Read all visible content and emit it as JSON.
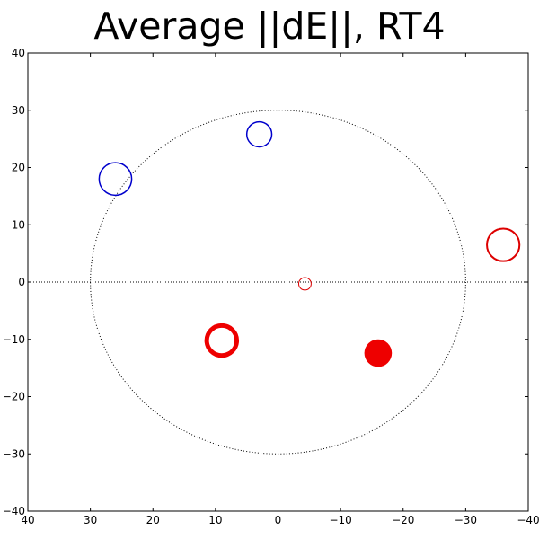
{
  "chart_data": {
    "type": "scatter",
    "title": "Average ||dE||, RT4",
    "xlim": [
      40,
      -40
    ],
    "ylim": [
      -40,
      40
    ],
    "x_axis_inverted": true,
    "grid": false,
    "xticks": [
      40,
      30,
      20,
      10,
      0,
      -10,
      -20,
      -30,
      -40
    ],
    "yticks": [
      40,
      30,
      20,
      10,
      0,
      -10,
      -20,
      -30,
      -40
    ],
    "xtick_labels": [
      "40",
      "30",
      "20",
      "10",
      "0",
      "−10",
      "−20",
      "−30",
      "−40"
    ],
    "ytick_labels": [
      "40",
      "30",
      "20",
      "10",
      "0",
      "−10",
      "−20",
      "−30",
      "−40"
    ],
    "reference_lines": {
      "x": 0,
      "y": 0,
      "style": "dotted"
    },
    "reference_circle": {
      "center": [
        0,
        0
      ],
      "radius": 30,
      "style": "dotted"
    },
    "points": [
      {
        "x": 26,
        "y": 18,
        "size": 2.6,
        "color": "#0000cc",
        "filled": false,
        "thickness": 1.5
      },
      {
        "x": 3,
        "y": 25.8,
        "size": 2.0,
        "color": "#0000cc",
        "filled": false,
        "thickness": 1.5
      },
      {
        "x": -36,
        "y": 6.5,
        "size": 2.6,
        "color": "#dd0000",
        "filled": false,
        "thickness": 2
      },
      {
        "x": -4.3,
        "y": -0.3,
        "size": 1.0,
        "color": "#dd0000",
        "filled": false,
        "thickness": 1
      },
      {
        "x": 9,
        "y": -10.2,
        "size": 2.4,
        "color": "#ee0000",
        "filled": false,
        "thickness": 5
      },
      {
        "x": -16,
        "y": -12.4,
        "size": 2.2,
        "color": "#ee0000",
        "filled": true,
        "thickness": 1
      }
    ]
  }
}
